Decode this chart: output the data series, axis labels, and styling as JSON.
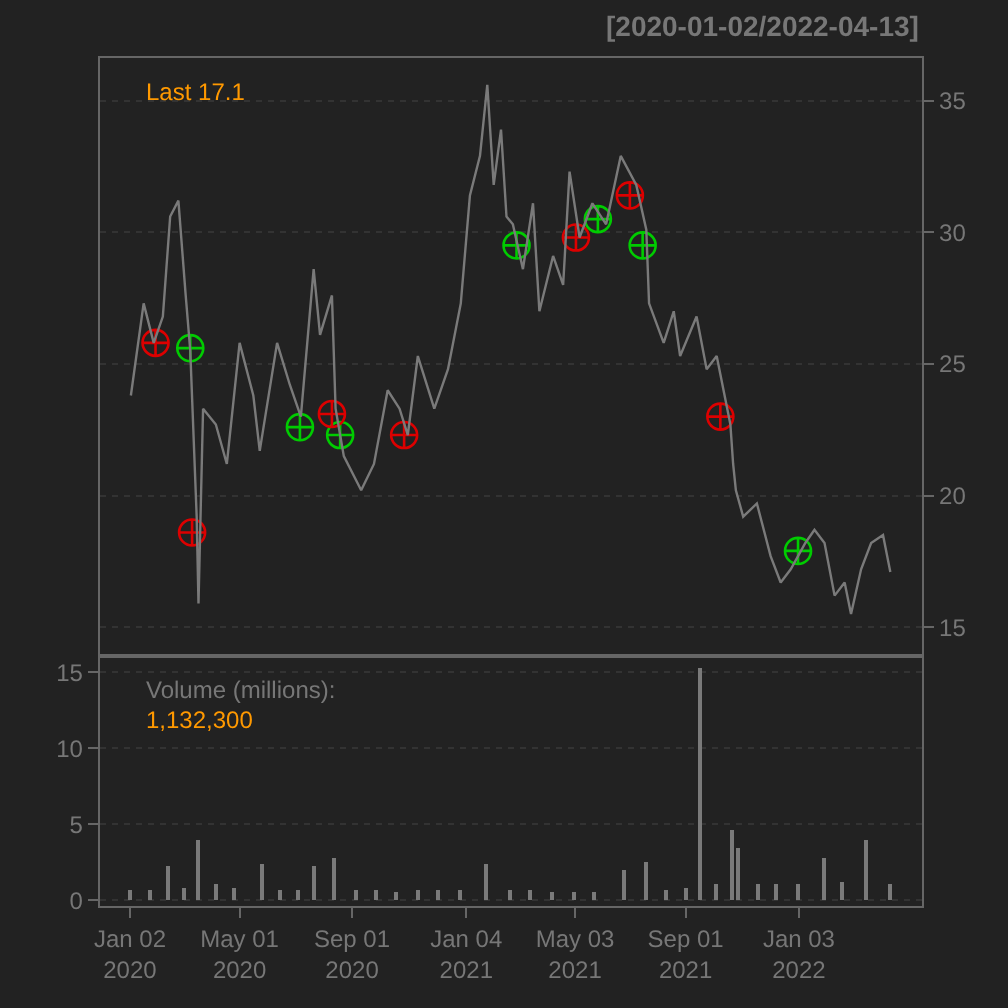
{
  "chart_data": [
    {
      "type": "line",
      "title": "[2020-01-02/2022-04-13]",
      "annotations": [
        "Last 17.1"
      ],
      "grid": "y",
      "tick_labels": "y",
      "xlim": [
        "2019-11-30",
        "2022-05-18"
      ],
      "ylim": [
        13.9,
        36.6
      ],
      "yticks": [
        15,
        20,
        25,
        30,
        35
      ],
      "series": [
        {
          "color": "#7a7a7a",
          "x": [
            "2020-01-03",
            "2020-01-17",
            "2020-01-28",
            "2020-02-07",
            "2020-02-15",
            "2020-02-24",
            "2020-03-03",
            "2020-03-08",
            "2020-03-15",
            "2020-03-17",
            "2020-03-22",
            "2020-04-05",
            "2020-04-17",
            "2020-05-01",
            "2020-05-16",
            "2020-05-23",
            "2020-06-11",
            "2020-06-25",
            "2020-07-07",
            "2020-07-21",
            "2020-07-28",
            "2020-08-10",
            "2020-08-14",
            "2020-08-23",
            "2020-09-11",
            "2020-09-25",
            "2020-10-10",
            "2020-10-23",
            "2020-11-01",
            "2020-11-12",
            "2020-11-30",
            "2020-12-15",
            "2020-12-29",
            "2021-01-08",
            "2021-01-19",
            "2021-01-27",
            "2021-02-03",
            "2021-02-11",
            "2021-02-17",
            "2021-02-24",
            "2021-03-07",
            "2021-03-18",
            "2021-03-25",
            "2021-04-09",
            "2021-04-20",
            "2021-04-27",
            "2021-05-08",
            "2021-05-22",
            "2021-06-06",
            "2021-06-22",
            "2021-07-09",
            "2021-07-20",
            "2021-07-23",
            "2021-08-08",
            "2021-08-19",
            "2021-08-26",
            "2021-09-13",
            "2021-09-24",
            "2021-10-05",
            "2021-10-20",
            "2021-10-23",
            "2021-10-26",
            "2021-11-03",
            "2021-11-18",
            "2021-12-03",
            "2021-12-14",
            "2021-12-25",
            "2022-01-10",
            "2022-01-20",
            "2022-01-31",
            "2022-02-11",
            "2022-02-22",
            "2022-03-01",
            "2022-03-12",
            "2022-03-23",
            "2022-04-05",
            "2022-04-13"
          ],
          "values": [
            23.8,
            27.3,
            25.8,
            26.8,
            30.6,
            31.2,
            27.6,
            25.5,
            19.2,
            15.9,
            23.3,
            22.7,
            21.2,
            25.8,
            23.8,
            21.7,
            25.8,
            24.2,
            23.0,
            28.6,
            26.1,
            27.6,
            23.3,
            21.5,
            20.2,
            21.2,
            24.0,
            23.3,
            22.3,
            25.3,
            23.3,
            24.8,
            27.3,
            31.4,
            32.9,
            35.6,
            31.8,
            33.9,
            30.6,
            30.3,
            28.6,
            31.1,
            27.0,
            29.1,
            28.0,
            32.3,
            29.8,
            31.1,
            30.3,
            32.9,
            31.8,
            30.1,
            27.3,
            25.8,
            27.0,
            25.3,
            26.8,
            24.8,
            25.3,
            22.7,
            21.2,
            20.2,
            19.2,
            19.7,
            17.7,
            16.7,
            17.2,
            18.2,
            18.7,
            18.2,
            16.2,
            16.7,
            15.5,
            17.2,
            18.2,
            18.5,
            17.1
          ]
        },
        {
          "type": "scatter",
          "marker": "cross",
          "color": "#00cc00",
          "x": [
            "2020-03-08",
            "2020-07-06",
            "2020-08-19",
            "2021-02-28",
            "2021-05-28",
            "2021-07-16",
            "2022-01-02"
          ],
          "values": [
            25.6,
            22.6,
            22.3,
            29.5,
            30.5,
            29.5,
            17.9
          ]
        },
        {
          "type": "scatter",
          "marker": "cross",
          "color": "#dd0000",
          "x": [
            "2020-01-30",
            "2020-03-10",
            "2020-08-10",
            "2020-10-28",
            "2021-05-04",
            "2021-07-02",
            "2021-10-09"
          ],
          "values": [
            25.8,
            18.6,
            23.1,
            22.3,
            29.8,
            31.4,
            23.0
          ]
        }
      ]
    },
    {
      "type": "bar",
      "annotations": [
        "Volume (millions):",
        "1,132,300"
      ],
      "grid": "y",
      "xlim": [
        "2019-11-30",
        "2022-05-18"
      ],
      "ylim": [
        -0.4,
        16.05
      ],
      "yticks": [
        0,
        5,
        10,
        15
      ],
      "xticks": [
        {
          "value": "2020-01-02",
          "label": "Jan 02\n2020"
        },
        {
          "value": "2020-05-01",
          "label": "May 01\n2020"
        },
        {
          "value": "2020-09-01",
          "label": "Sep 01\n2020"
        },
        {
          "value": "2021-01-04",
          "label": "Jan 04\n2021"
        },
        {
          "value": "2021-05-03",
          "label": "May 03\n2021"
        },
        {
          "value": "2021-09-01",
          "label": "Sep 01\n2021"
        },
        {
          "value": "2022-01-03",
          "label": "Jan 03\n2022"
        }
      ],
      "series": [
        {
          "color": "#7a7a7a",
          "x": [
            "2020-01-03",
            "2020-01-24",
            "2020-02-13",
            "2020-03-01",
            "2020-03-16",
            "2020-04-05",
            "2020-04-25",
            "2020-05-25",
            "2020-06-15",
            "2020-07-05",
            "2020-07-21",
            "2020-08-12",
            "2020-09-05",
            "2020-09-28",
            "2020-10-20",
            "2020-11-12",
            "2020-12-05",
            "2020-12-28",
            "2021-01-26",
            "2021-02-20",
            "2021-03-15",
            "2021-04-08",
            "2021-05-01",
            "2021-05-25",
            "2021-06-25",
            "2021-07-19",
            "2021-08-10",
            "2021-09-01",
            "2021-09-17",
            "2021-10-05",
            "2021-10-21",
            "2021-10-29",
            "2021-11-20",
            "2021-12-10",
            "2022-01-02",
            "2022-01-30",
            "2022-02-20",
            "2022-03-18",
            "2022-04-13"
          ],
          "values": [
            0.6,
            0.7,
            2.2,
            0.8,
            4.0,
            1.0,
            0.8,
            2.3,
            0.6,
            0.6,
            2.2,
            2.8,
            0.6,
            0.6,
            0.5,
            0.6,
            0.6,
            0.7,
            2.4,
            0.7,
            0.6,
            0.5,
            0.5,
            0.5,
            2.0,
            2.5,
            0.6,
            0.8,
            15.3,
            1.0,
            4.6,
            3.4,
            1.0,
            1.0,
            1.1,
            2.7,
            1.2,
            3.9,
            1.1
          ]
        }
      ]
    }
  ]
}
